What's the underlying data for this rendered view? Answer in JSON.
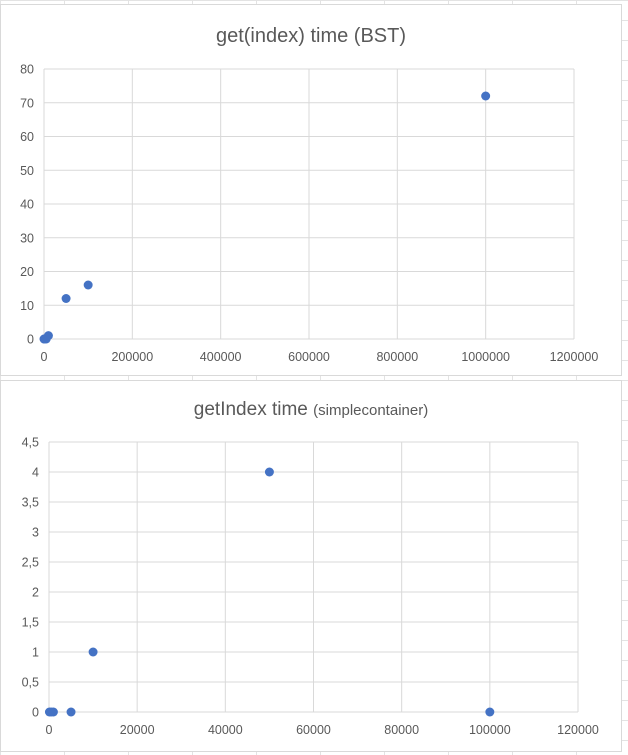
{
  "chart_data": [
    {
      "type": "scatter",
      "title": "get(index) time (BST)",
      "subtitle": "",
      "xlabel": "",
      "ylabel": "",
      "xlim": [
        0,
        1200000
      ],
      "ylim": [
        0,
        80
      ],
      "x_ticks": [
        0,
        200000,
        400000,
        600000,
        800000,
        1000000,
        1200000
      ],
      "y_ticks": [
        0,
        10,
        20,
        30,
        40,
        50,
        60,
        70,
        80
      ],
      "x_tick_labels": [
        "0",
        "200000",
        "400000",
        "600000",
        "800000",
        "1000000",
        "1200000"
      ],
      "y_tick_labels": [
        "0",
        "10",
        "20",
        "30",
        "40",
        "50",
        "60",
        "70",
        "80"
      ],
      "grid": true,
      "legend": "none",
      "series": [
        {
          "color": "#4472c4",
          "points": [
            {
              "x": 100,
              "y": 0
            },
            {
              "x": 500,
              "y": 0
            },
            {
              "x": 1000,
              "y": 0
            },
            {
              "x": 5000,
              "y": 0
            },
            {
              "x": 10000,
              "y": 1
            },
            {
              "x": 50000,
              "y": 12
            },
            {
              "x": 100000,
              "y": 16
            },
            {
              "x": 1000000,
              "y": 72
            }
          ]
        }
      ]
    },
    {
      "type": "scatter",
      "title": "getIndex time",
      "subtitle": "(simplecontainer)",
      "xlabel": "",
      "ylabel": "",
      "xlim": [
        0,
        120000
      ],
      "ylim": [
        0,
        4.5
      ],
      "x_ticks": [
        0,
        20000,
        40000,
        60000,
        80000,
        100000,
        120000
      ],
      "y_ticks": [
        0,
        0.5,
        1,
        1.5,
        2,
        2.5,
        3,
        3.5,
        4,
        4.5
      ],
      "x_tick_labels": [
        "0",
        "20000",
        "40000",
        "60000",
        "80000",
        "100000",
        "120000"
      ],
      "y_tick_labels": [
        "0",
        "0,5",
        "1",
        "1,5",
        "2",
        "2,5",
        "3",
        "3,5",
        "4",
        "4,5"
      ],
      "grid": true,
      "legend": "none",
      "series": [
        {
          "color": "#4472c4",
          "points": [
            {
              "x": 100,
              "y": 0
            },
            {
              "x": 500,
              "y": 0
            },
            {
              "x": 1000,
              "y": 0
            },
            {
              "x": 5000,
              "y": 0
            },
            {
              "x": 10000,
              "y": 1
            },
            {
              "x": 50000,
              "y": 4
            },
            {
              "x": 100000,
              "y": 0
            }
          ]
        }
      ]
    }
  ]
}
